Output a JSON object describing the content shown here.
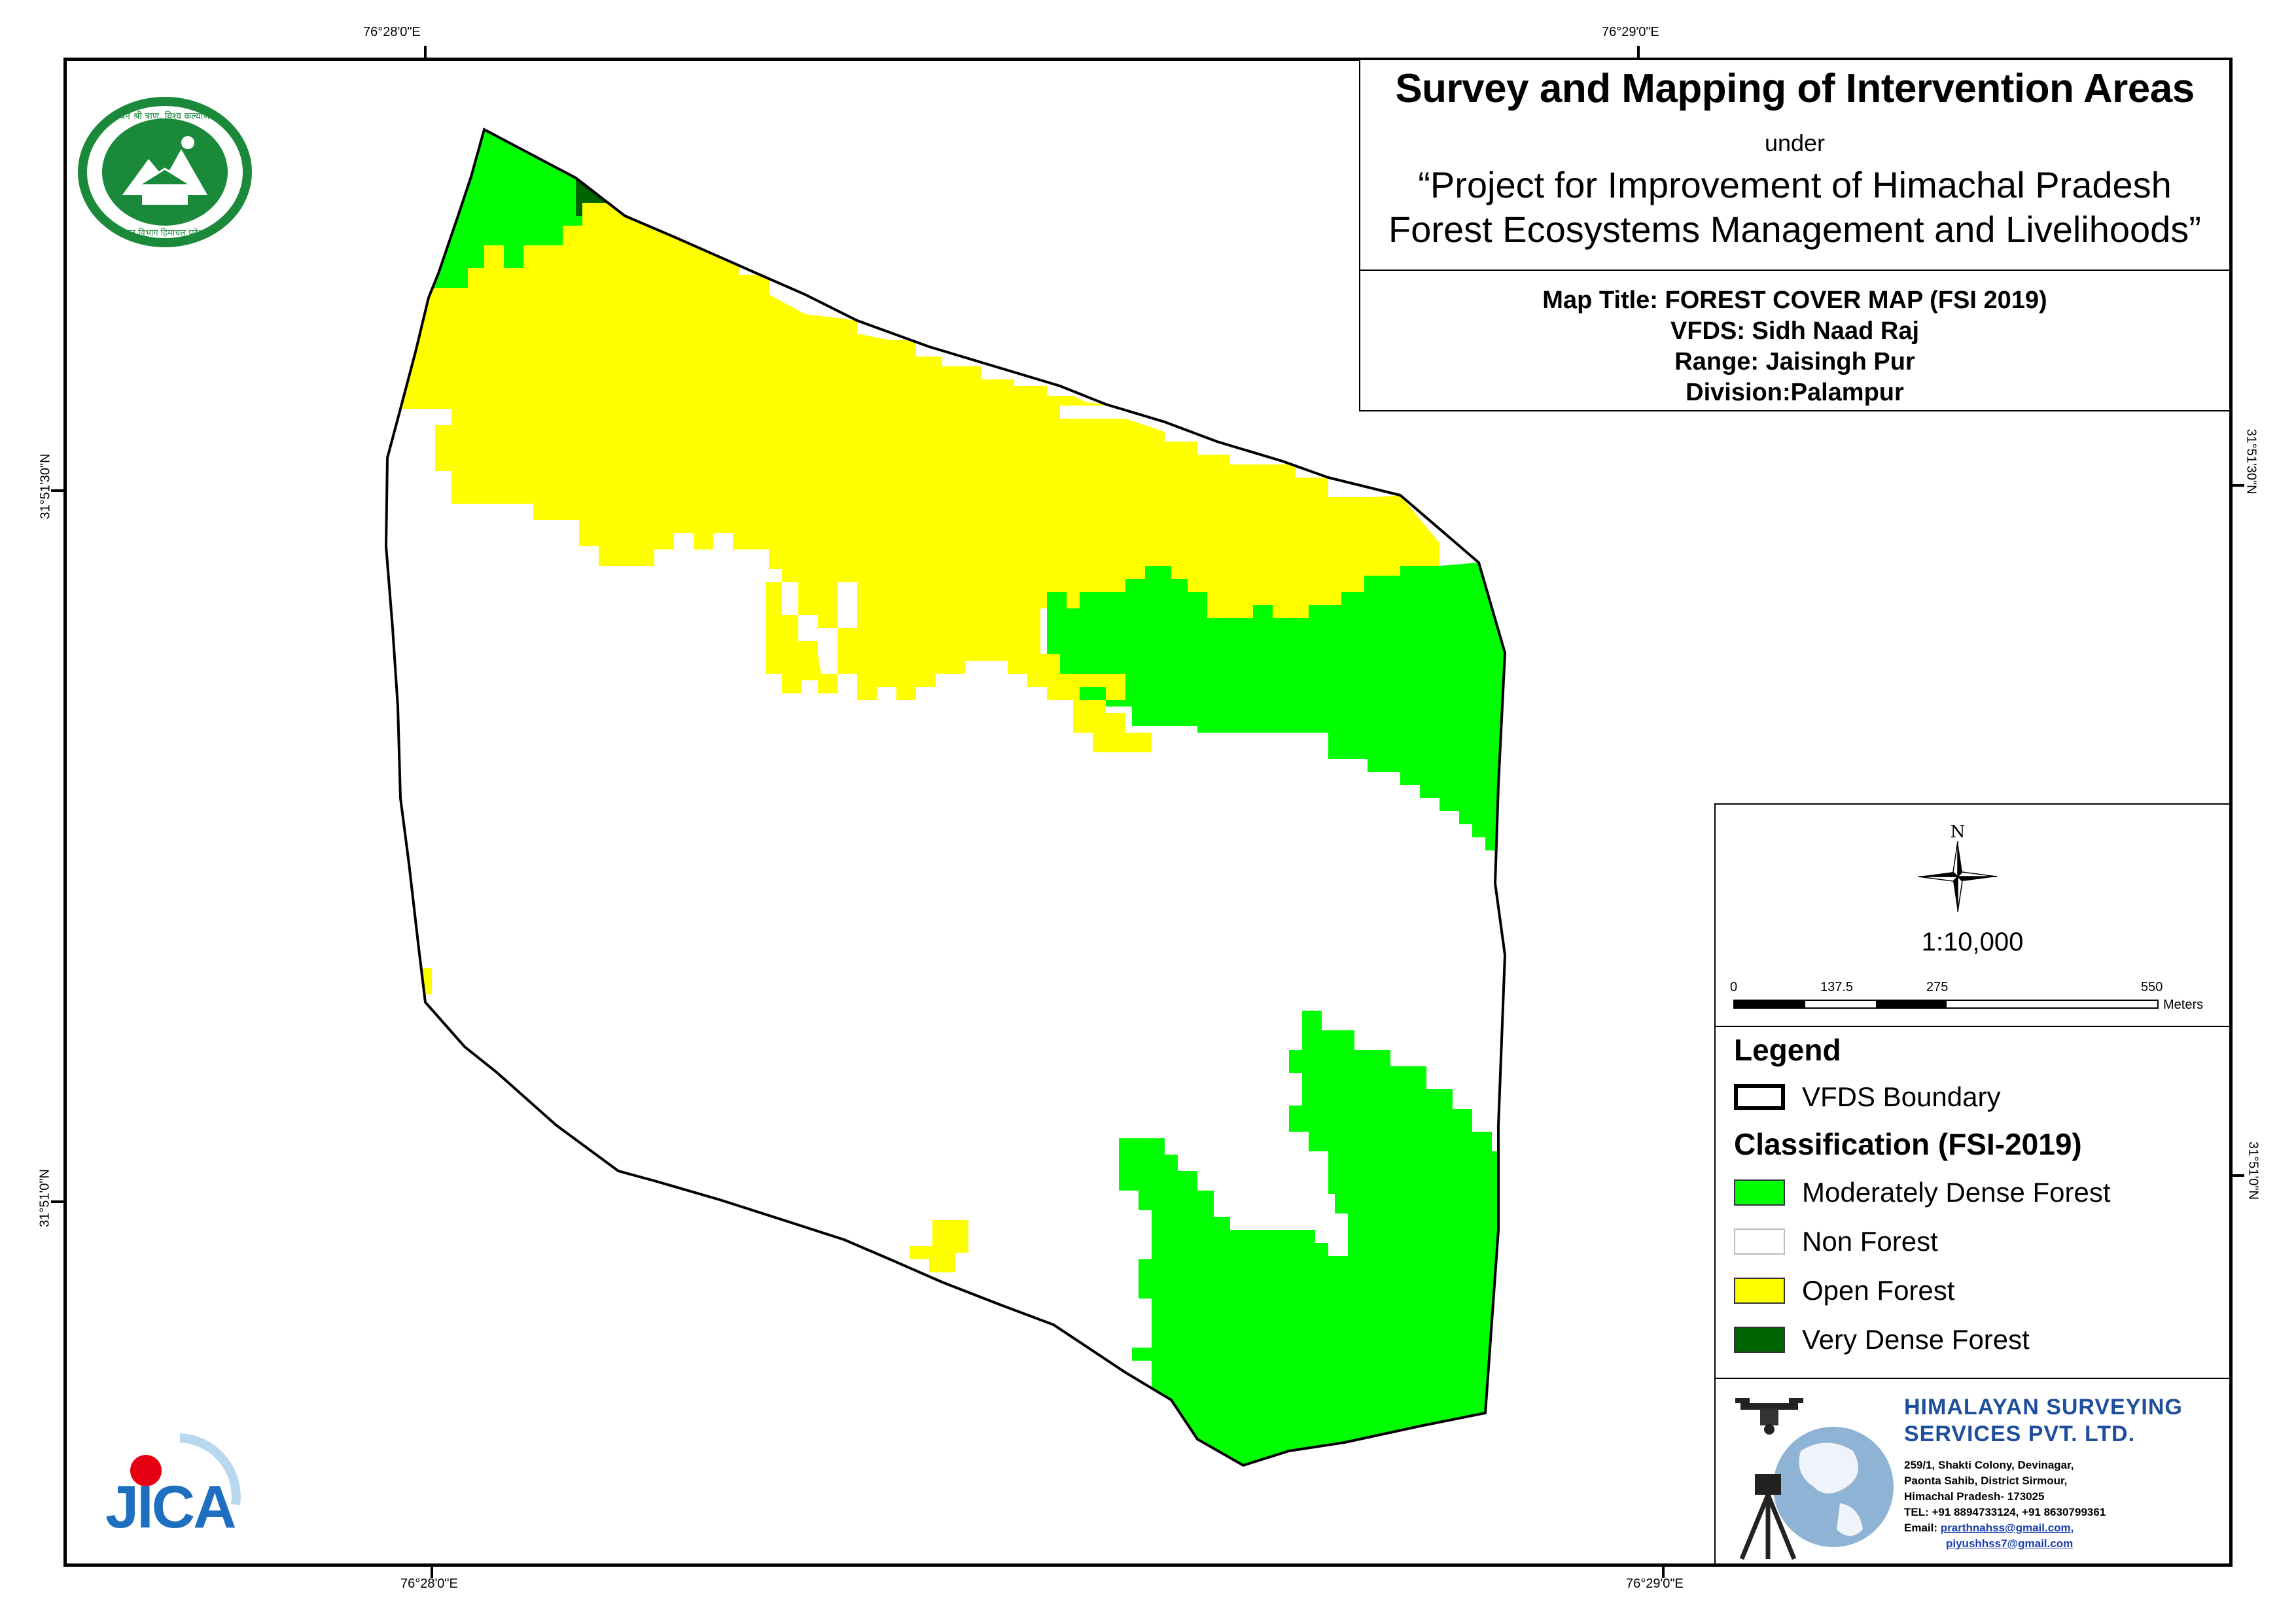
{
  "title": {
    "main": "Survey and Mapping of Intervention Areas",
    "under": "under",
    "project_line1": "“Project for Improvement of Himachal Pradesh",
    "project_line2": "Forest Ecosystems Management and Livelihoods”"
  },
  "map_info": {
    "map_title": "Map Title: FOREST COVER MAP (FSI 2019)",
    "vfds": "VFDS: Sidh Naad Raj",
    "range": "Range: Jaisingh Pur",
    "division": "Division:Palampur"
  },
  "coordinates": {
    "top_left": "76°28'0\"E",
    "top_right": "76°29'0\"E",
    "bottom_left": "76°28'0\"E",
    "bottom_right": "76°29'0\"E",
    "left_upper": "31°51'30\"N",
    "left_lower": "31°51'0\"N",
    "right_upper": "31°51'30\"N",
    "right_lower": "31°51'0\"N"
  },
  "north_arrow": {
    "label": "N"
  },
  "scale": {
    "ratio": "1:10,000",
    "ticks": [
      "0",
      "137.5",
      "275",
      "550"
    ],
    "unit": "Meters"
  },
  "legend": {
    "heading": "Legend",
    "boundary_label": "VFDS Boundary",
    "classification_heading": "Classification (FSI-2019)",
    "classes": [
      {
        "label": "Moderately Dense Forest",
        "color": "#00ff00"
      },
      {
        "label": "Non Forest",
        "color": "#ffffff"
      },
      {
        "label": "Open Forest",
        "color": "#ffff00"
      },
      {
        "label": "Very Dense Forest",
        "color": "#006400"
      }
    ]
  },
  "company": {
    "name_line1": "HIMALAYAN SURVEYING",
    "name_line2": "SERVICES PVT. LTD.",
    "address": [
      "259/1, Shakti Colony, Devinagar,",
      "Paonta Sahib, District Sirmour,",
      "Himachal Pradesh- 173025",
      "TEL: +91 8894733124, +91 8630799361"
    ],
    "email_label": "Email:",
    "email1": "prarthnahss@gmail.com,",
    "email2": "piyushhss7@gmail.com"
  },
  "logos": {
    "forest_dept_icon": "forest-department-seal-icon",
    "forest_dept_top_text": "वन श्री त्राण, विश्व कल्याण",
    "forest_dept_bottom_text": "वन विभाग हिमाचल प्रदेश",
    "jica_text": "JICA",
    "company_icon": "surveying-globe-icon"
  },
  "colors": {
    "moderately_dense": "#00ff00",
    "open_forest": "#ffff00",
    "very_dense": "#006400",
    "non_forest": "#ffffff",
    "company_blue": "#1f4e9c"
  }
}
